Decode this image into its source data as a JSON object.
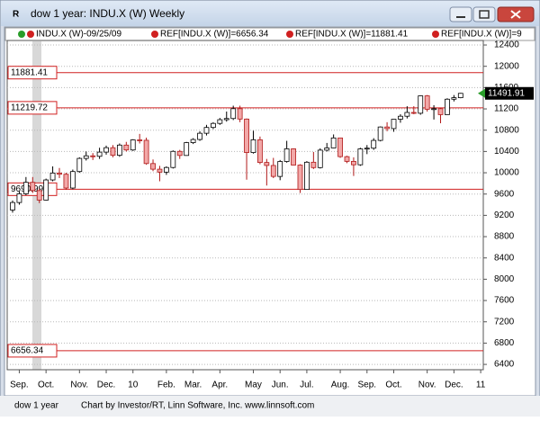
{
  "window": {
    "title": "dow 1 year: INDU.X (W) Weekly",
    "legend": [
      "INDU.X (W)-09/25/09",
      "REF[INDU.X (W)]=6656.34",
      "REF[INDU.X (W)]=11881.41",
      "REF[INDU.X (W)]=9"
    ],
    "status": [
      "dow 1 year",
      "Chart by Investor/RT, Linn Software, Inc. www.linnsoft.com"
    ]
  },
  "chart_data": {
    "type": "candlestick",
    "categories": [
      null,
      "Sep.",
      null,
      null,
      null,
      "Oct.",
      null,
      null,
      null,
      null,
      "Nov.",
      null,
      null,
      null,
      "Dec.",
      null,
      null,
      null,
      "10",
      null,
      null,
      null,
      null,
      "Feb.",
      null,
      null,
      null,
      "Mar.",
      null,
      null,
      null,
      "Apr.",
      null,
      null,
      null,
      null,
      "May",
      null,
      null,
      null,
      "Jun.",
      null,
      null,
      null,
      "Jul.",
      null,
      null,
      null,
      null,
      "Aug.",
      null,
      null,
      null,
      "Sep.",
      null,
      null,
      null,
      "Oct.",
      null,
      null,
      null,
      null,
      "Nov.",
      null,
      null,
      null,
      "Dec.",
      null,
      null,
      null,
      "11"
    ],
    "open": [
      9300,
      9441,
      9605,
      9820,
      9665,
      9487,
      9865,
      9995,
      9972,
      9713,
      10023,
      10270,
      10318,
      10309,
      10388,
      10471,
      10328,
      10520,
      10428,
      10618,
      10610,
      10173,
      10067,
      10012,
      10099,
      10402,
      10325,
      10566,
      10625,
      10742,
      10851,
      10927,
      10997,
      11019,
      11204,
      11009,
      10380,
      10620,
      10193,
      10137,
      9931,
      10212,
      10450,
      10144,
      9686,
      10198,
      10097,
      10425,
      10466,
      10654,
      10303,
      10214,
      10150,
      10448,
      10462,
      10608,
      10860,
      10830,
      11006,
      11062,
      11133,
      11118,
      11445,
      11193,
      11204,
      11092,
      11382,
      11410,
      null,
      null,
      null
    ],
    "high": [
      9480,
      9650,
      9920,
      9920,
      9700,
      9890,
      10120,
      10090,
      10000,
      10060,
      10290,
      10400,
      10370,
      10470,
      10510,
      10520,
      10550,
      10580,
      10630,
      10730,
      10660,
      10250,
      10130,
      10120,
      10420,
      10430,
      10580,
      10650,
      10780,
      10900,
      10950,
      11030,
      11150,
      11260,
      11260,
      11020,
      10790,
      10680,
      10260,
      10280,
      10240,
      10600,
      10460,
      10160,
      10220,
      10390,
      10460,
      10560,
      10720,
      10660,
      10320,
      10290,
      10470,
      10520,
      10650,
      10870,
      10950,
      11010,
      11100,
      11250,
      11250,
      11450,
      11460,
      11270,
      11220,
      11400,
      11460,
      11500,
      null,
      null,
      null
    ],
    "low": [
      9250,
      9400,
      9580,
      9620,
      9430,
      9480,
      9840,
      9900,
      9680,
      9690,
      10000,
      10230,
      10240,
      10260,
      10340,
      10290,
      10300,
      10400,
      10410,
      10550,
      10150,
      10030,
      9840,
      9960,
      10080,
      10260,
      10320,
      10540,
      10600,
      10700,
      10820,
      10900,
      10960,
      10990,
      10950,
      9870,
      10360,
      10160,
      9760,
      9900,
      9860,
      10190,
      10140,
      9620,
      9680,
      10070,
      10080,
      10400,
      10460,
      10280,
      10180,
      9940,
      10130,
      10350,
      10430,
      10590,
      10780,
      10770,
      10940,
      11020,
      11100,
      11090,
      11150,
      11000,
      10930,
      11090,
      11340,
      11400,
      null,
      null,
      null
    ],
    "close": [
      9441,
      9605,
      9820,
      9665,
      9487,
      9865,
      9995,
      9972,
      9713,
      10023,
      10270,
      10318,
      10309,
      10388,
      10471,
      10328,
      10520,
      10428,
      10618,
      10610,
      10173,
      10067,
      10012,
      10099,
      10402,
      10325,
      10566,
      10625,
      10742,
      10851,
      10927,
      10997,
      11019,
      11204,
      11009,
      10380,
      10620,
      10193,
      10137,
      9931,
      10212,
      10450,
      10144,
      9686,
      10198,
      10097,
      10425,
      10466,
      10654,
      10303,
      10214,
      10150,
      10448,
      10462,
      10608,
      10860,
      10830,
      11006,
      11062,
      11133,
      11118,
      11445,
      11193,
      11204,
      11092,
      11382,
      11410,
      11491.91,
      null,
      null,
      null
    ],
    "up_color": "#ffffff",
    "down_color": "#f2a8a8",
    "reference_lines": [
      11881.41,
      11219.72,
      9690.99,
      6656.34
    ],
    "reference_color": "#d02020",
    "ylim": [
      6300,
      12485
    ],
    "yticks": [
      6400,
      6800,
      7200,
      7600,
      8000,
      8400,
      8800,
      9200,
      9600,
      10000,
      10400,
      10800,
      11200,
      11600,
      12000,
      12400
    ],
    "grid": true
  }
}
